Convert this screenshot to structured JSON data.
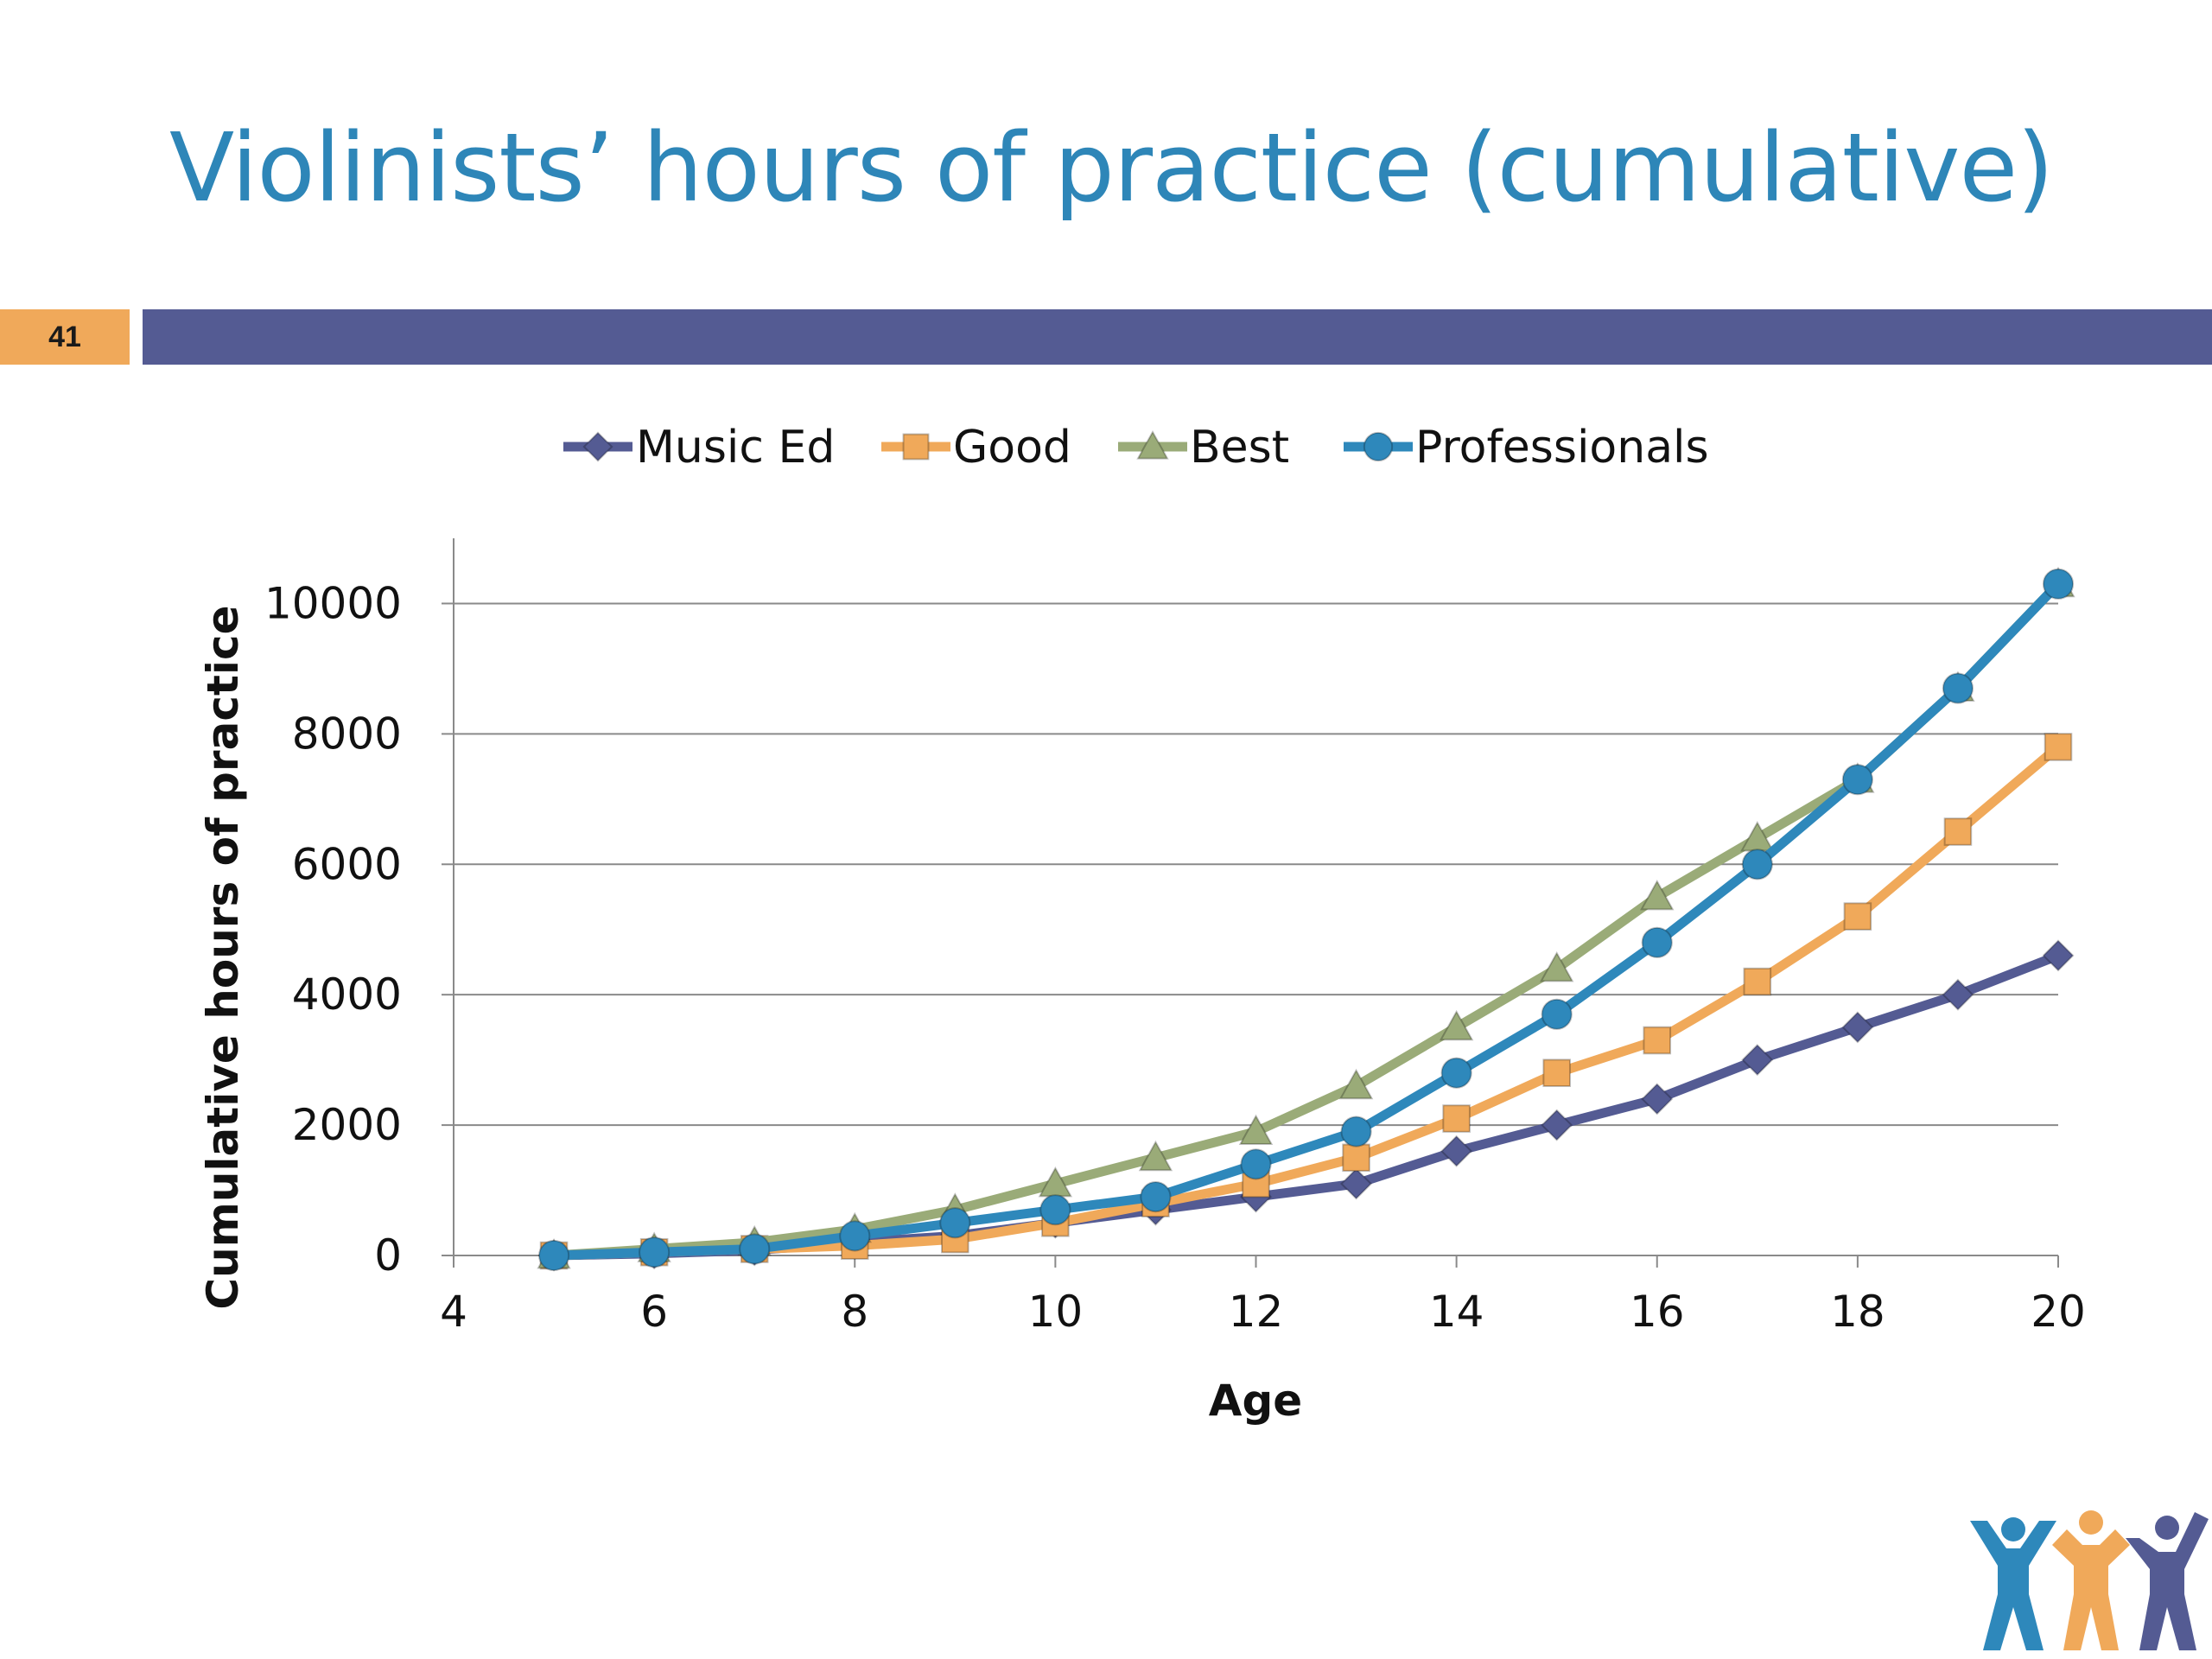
{
  "slide": {
    "title": "Violinists’ hours of practice (cumulative)",
    "number": "41"
  },
  "colors": {
    "title": "#2e86b8",
    "bar": "#545b93",
    "number_box": "#f0a95a"
  },
  "chart_data": {
    "type": "line",
    "xlabel": "Age",
    "ylabel": "Cumulative hours of practice",
    "xlim": [
      4,
      20
    ],
    "ylim": [
      0,
      11000
    ],
    "xticks": [
      4,
      6,
      8,
      10,
      12,
      14,
      16,
      18,
      20
    ],
    "yticks": [
      0,
      2000,
      4000,
      6000,
      8000,
      10000
    ],
    "grid": "horizontal",
    "legend_position": "top",
    "x": [
      5,
      6,
      7,
      8,
      9,
      10,
      11,
      12,
      13,
      14,
      15,
      16,
      17,
      18,
      19,
      20
    ],
    "series": [
      {
        "name": "Music Ed",
        "marker": "diamond",
        "color": "#545b93",
        "values": [
          0,
          30,
          80,
          200,
          300,
          500,
          700,
          900,
          1100,
          1600,
          2000,
          2400,
          3000,
          3500,
          4000,
          4600
        ]
      },
      {
        "name": "Good",
        "marker": "square",
        "color": "#f0a95a",
        "values": [
          0,
          50,
          100,
          150,
          250,
          500,
          800,
          1100,
          1500,
          2100,
          2800,
          3300,
          4200,
          5200,
          6500,
          7800
        ]
      },
      {
        "name": "Best",
        "marker": "triangle",
        "color": "#9aab78",
        "values": [
          0,
          100,
          200,
          400,
          700,
          1100,
          1500,
          1900,
          2600,
          3500,
          4400,
          5500,
          6400,
          7300,
          8700,
          10300
        ]
      },
      {
        "name": "Professionals",
        "marker": "circle",
        "color": "#2e88bb",
        "values": [
          0,
          50,
          100,
          300,
          500,
          700,
          900,
          1400,
          1900,
          2800,
          3700,
          4800,
          6000,
          7300,
          8700,
          10300
        ]
      }
    ]
  }
}
